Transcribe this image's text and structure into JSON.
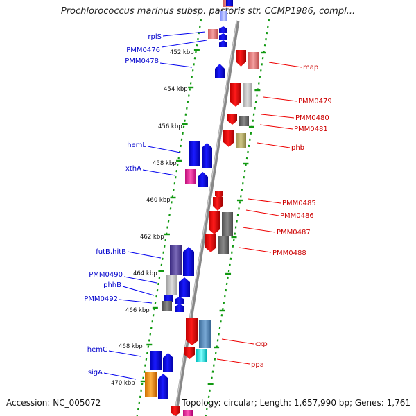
{
  "title": "Prochlorococcus marinus subsp. pastoris str. CCMP1986, compl...",
  "footer": {
    "accession": "Accession: NC_005072",
    "topology": "Topology: circular; Length: 1,657,990 bp; Genes: 1,761"
  },
  "kbp_ticks": [
    "452 kbp",
    "454 kbp",
    "456 kbp",
    "458 kbp",
    "460 kbp",
    "462 kbp",
    "464 kbp",
    "466 kbp",
    "468 kbp",
    "470 kbp"
  ],
  "left_labels": [
    "rplS",
    "PMM0476",
    "PMM0478",
    "hemL",
    "xthA",
    "futB,hitB",
    "PMM0490",
    "phhB",
    "PMM0492",
    "hemC",
    "sigA"
  ],
  "right_labels": [
    "map",
    "PMM0479",
    "PMM0480",
    "PMM0481",
    "phb",
    "PMM0485",
    "PMM0486",
    "PMM0487",
    "PMM0488",
    "cxp",
    "ppa"
  ],
  "colors": {
    "forward_strand": "#0000ee",
    "reverse_strand": "#ee0000",
    "backbone": "#888888",
    "tick": "#119911"
  }
}
